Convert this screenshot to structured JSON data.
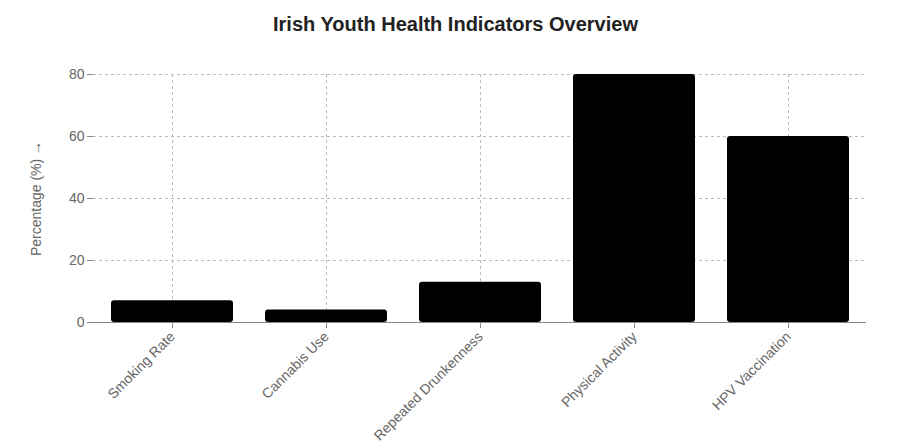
{
  "chart_data": {
    "type": "bar",
    "title": "Irish Youth Health Indicators Overview",
    "y_label": "Percentage (%)",
    "categories": [
      "Smoking Rate",
      "Cannabis Use",
      "Repeated Drunkenness",
      "Physical Activity",
      "HPV Vaccination"
    ],
    "values": [
      7,
      4,
      13,
      80,
      60
    ],
    "color": "#000000",
    "ylim": [
      0,
      80
    ],
    "yticks": [
      0,
      20,
      40,
      60,
      80
    ],
    "grid": true
  }
}
